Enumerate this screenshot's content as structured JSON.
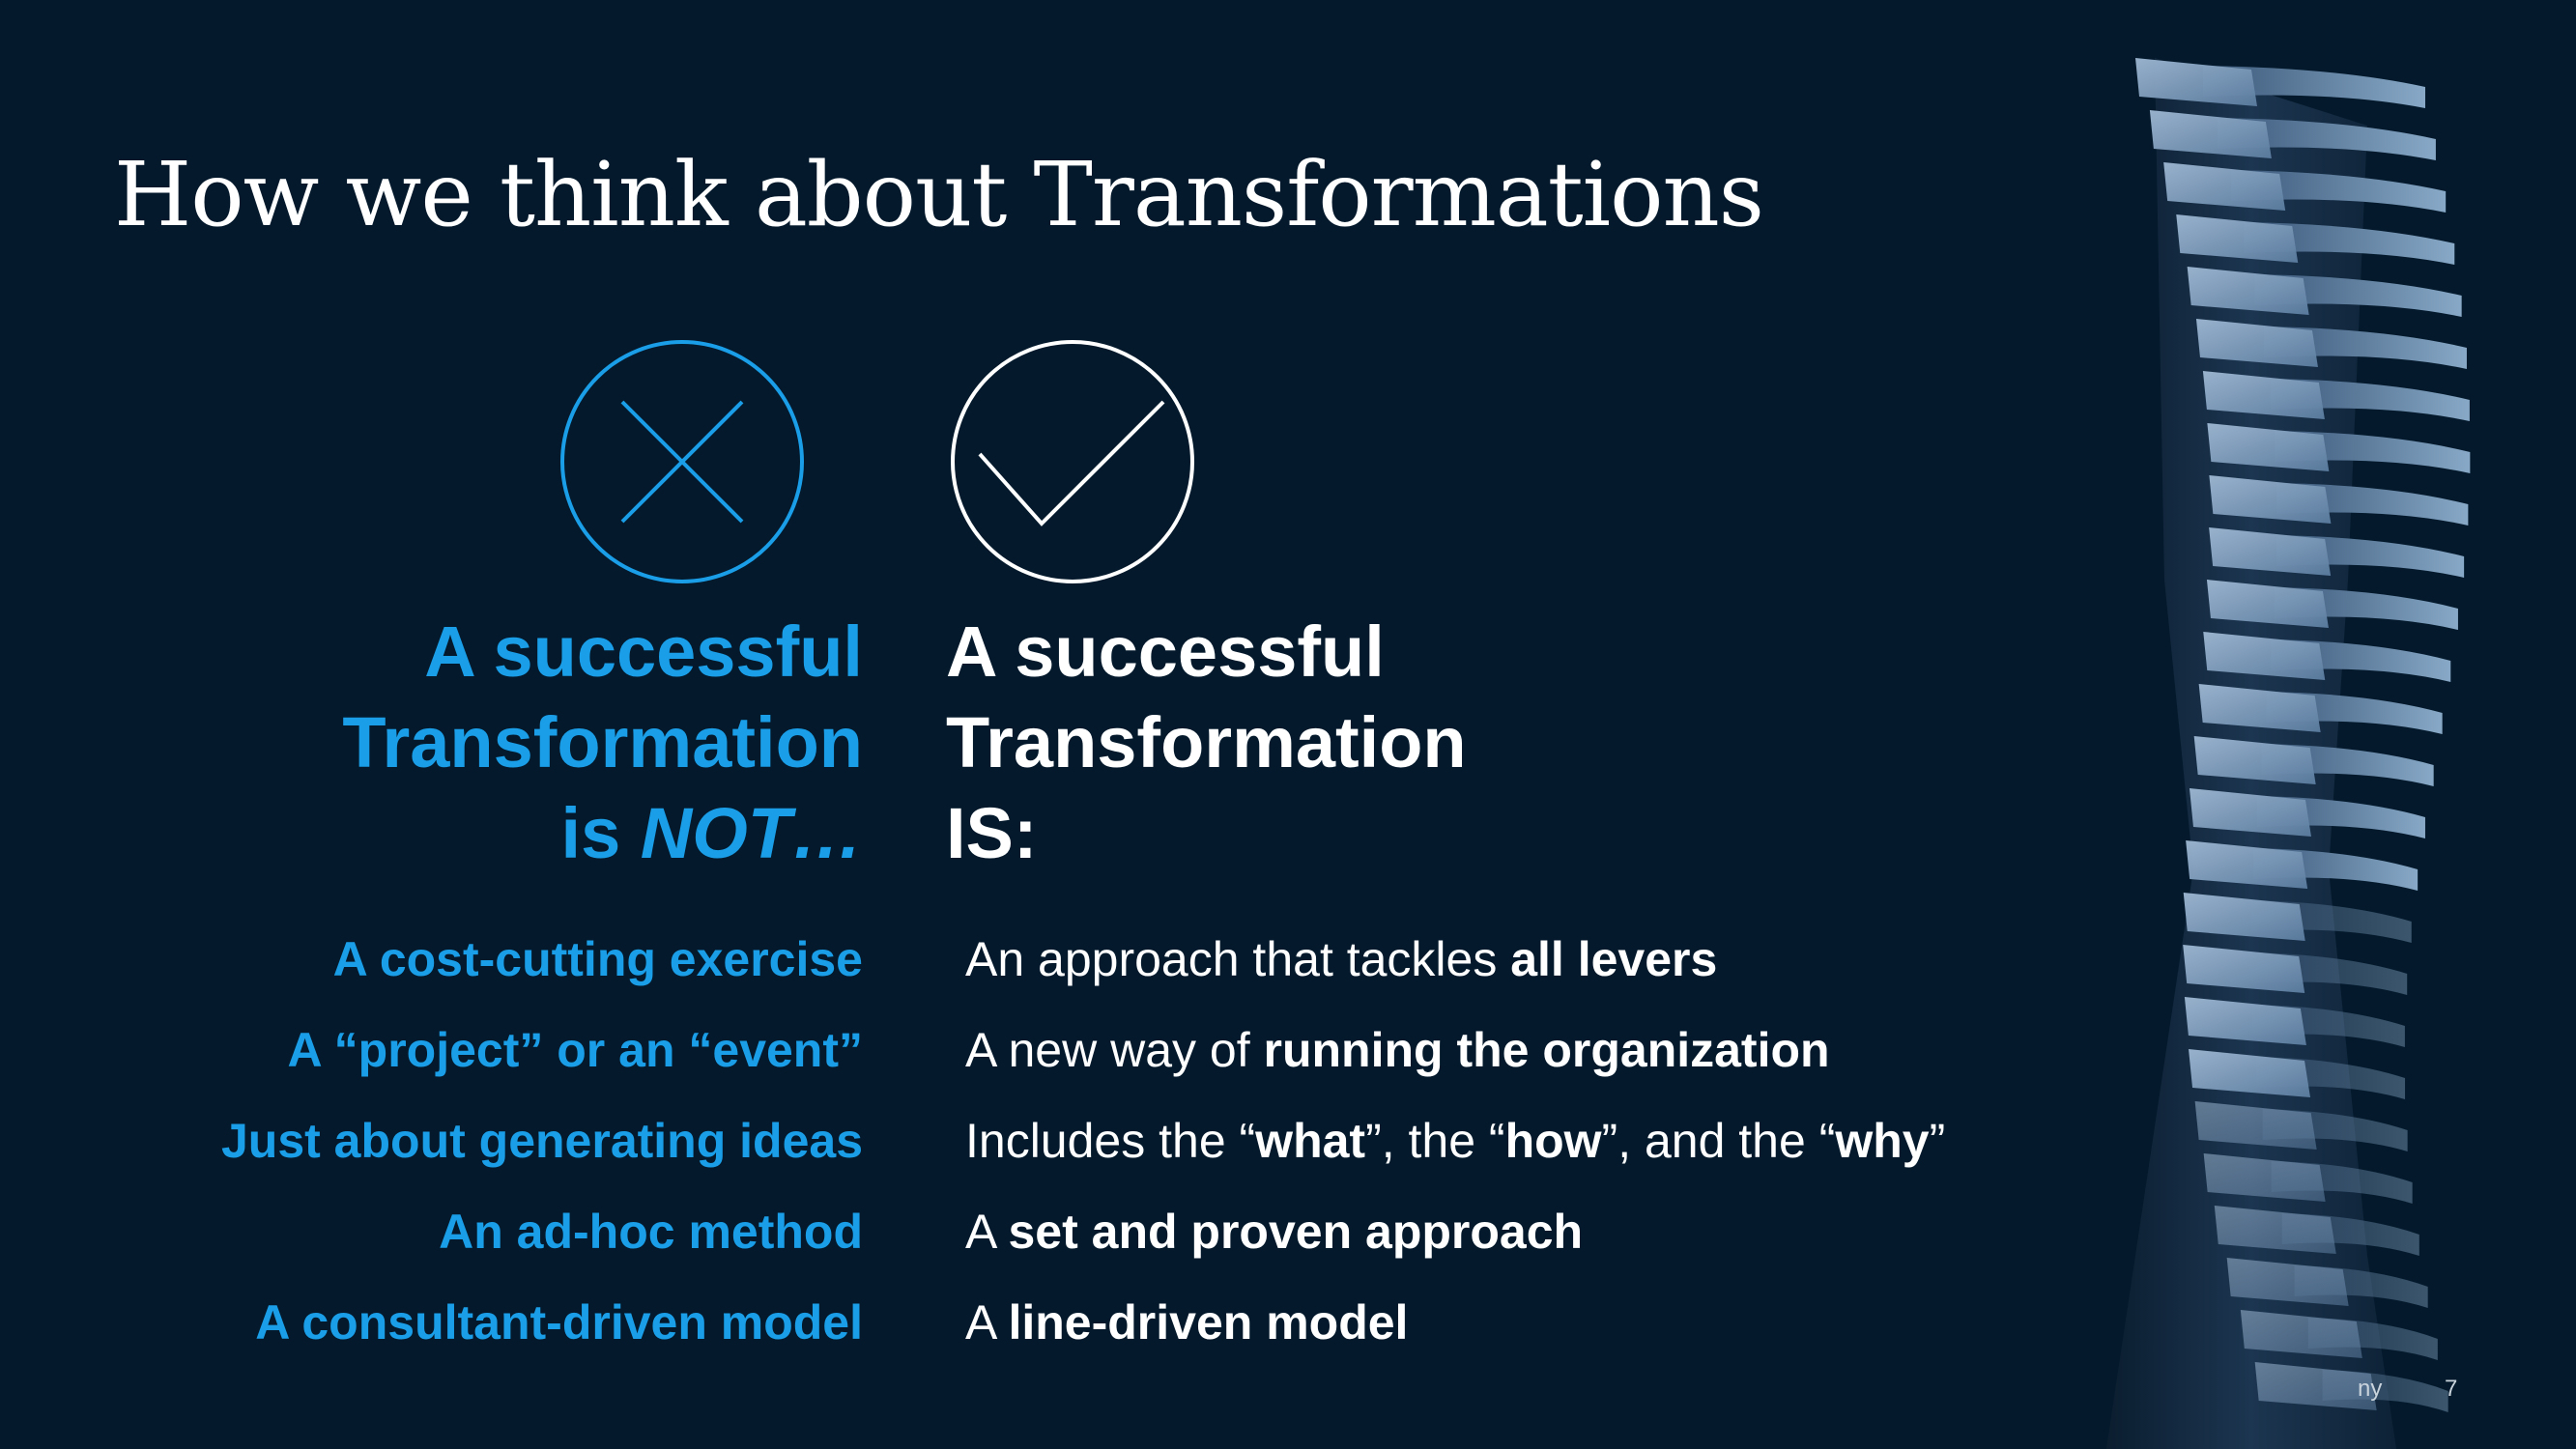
{
  "slide": {
    "title": "How we think about Transformations",
    "not_column": {
      "icon": "x-circle-icon",
      "heading_line1": "A successful",
      "heading_line2": "Transformation",
      "heading_line3_prefix": "is ",
      "heading_line3_emphasis": "NOT…",
      "items": [
        "A cost-cutting exercise",
        "A “project” or an “event”",
        "Just about generating ideas",
        "An ad-hoc method",
        "A consultant-driven model"
      ]
    },
    "is_column": {
      "icon": "check-circle-icon",
      "heading_line1": "A successful",
      "heading_line2": "Transformation",
      "heading_line3": "IS:",
      "items": [
        {
          "parts": [
            "An approach that tackles ",
            "all levers"
          ]
        },
        {
          "parts": [
            "A new way of ",
            "running the organization"
          ]
        },
        {
          "parts": [
            "Includes the “",
            "what",
            "”, the “",
            "how",
            "”, and the “",
            "why",
            "”"
          ]
        },
        {
          "parts": [
            "A ",
            "set and proven approach"
          ]
        },
        {
          "parts": [
            "A ",
            "line-driven model"
          ]
        }
      ]
    },
    "footer_partial": "ny",
    "page_number": "7",
    "colors": {
      "background": "#041a2c",
      "accent_blue": "#1a9ee8",
      "text_white": "#ffffff"
    }
  }
}
